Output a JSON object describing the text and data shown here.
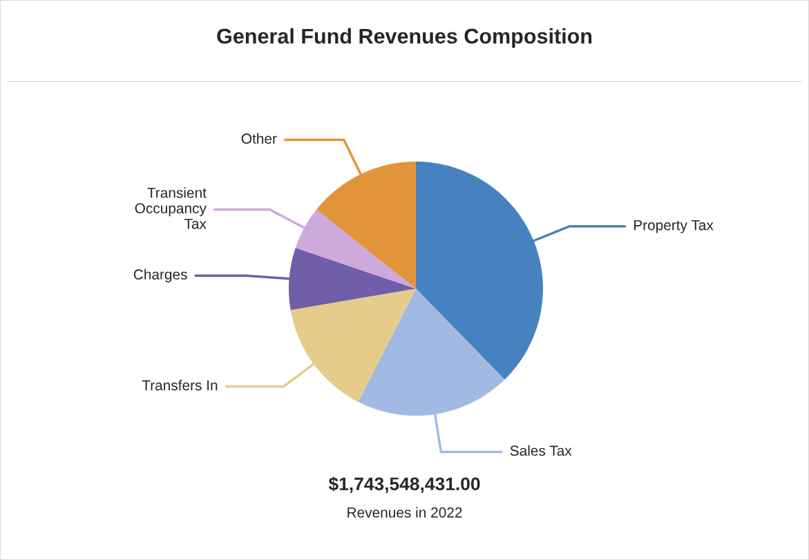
{
  "chart_data": {
    "type": "pie",
    "title": "General Fund Revenues Composition",
    "categories": [
      "Property Tax",
      "Sales Tax",
      "Transfers In",
      "Charges",
      "Transient Occupancy Tax",
      "Other"
    ],
    "values": [
      37.7,
      19.8,
      14.8,
      7.9,
      5.5,
      14.3
    ],
    "colors": [
      "#4682bf",
      "#a2bae3",
      "#e5cc8a",
      "#6f5ea8",
      "#cda9dc",
      "#e2943a"
    ],
    "annotations": [
      "$1,743,548,431.00",
      "Revenues in 2022"
    ]
  }
}
